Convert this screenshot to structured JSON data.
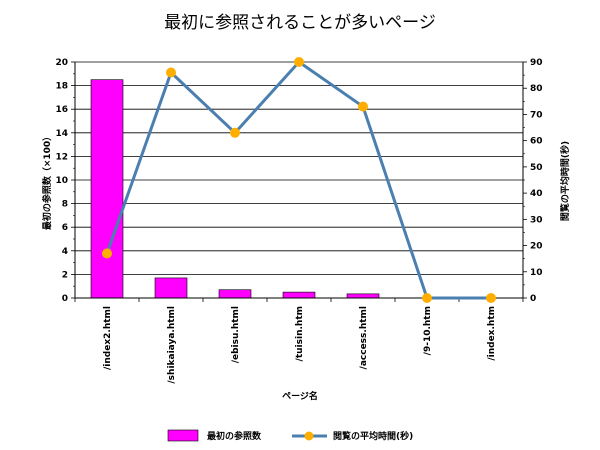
{
  "chart_data": {
    "type": "bar",
    "title": "最初に参照されることが多いページ",
    "xlabel": "ページ名",
    "categories": [
      "/index2.html",
      "/shikaiaya.html",
      "/ebisu.html",
      "/tuisin.htm",
      "/access.html",
      "/9-10.htm",
      "/index.htm"
    ],
    "ylabel_left": "最初の参照数（×100）",
    "ylabel_right": "閲覧の平均時間(秒)",
    "ylim_left": [
      0,
      20
    ],
    "ylim_right": [
      0,
      90
    ],
    "yticks_left": [
      "0",
      "2",
      "4",
      "6",
      "8",
      "10",
      "12",
      "14",
      "16",
      "18",
      "20"
    ],
    "yticks_right": [
      "0",
      "10",
      "20",
      "30",
      "40",
      "50",
      "60",
      "70",
      "80",
      "90"
    ],
    "grid": true,
    "legend_position": "bottom",
    "series": [
      {
        "name": "最初の参照数",
        "type": "bar",
        "axis": "left",
        "color": "#ff00ff",
        "values": [
          18.5,
          1.7,
          0.7,
          0.5,
          0.35,
          0,
          0
        ]
      },
      {
        "name": "閲覧の平均時間(秒)",
        "type": "line",
        "axis": "right",
        "color": "#4a7fb0",
        "marker_color": "#ffae00",
        "values": [
          17,
          86,
          63,
          90,
          73,
          0,
          0
        ]
      }
    ]
  }
}
